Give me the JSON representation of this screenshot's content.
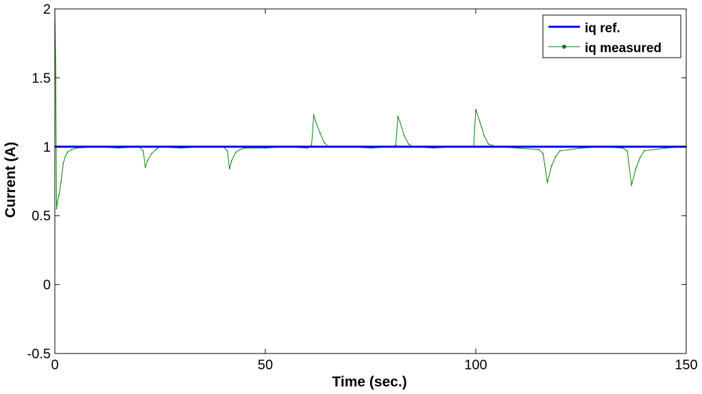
{
  "chart_data": {
    "type": "line",
    "title": "",
    "xlabel": "Time (sec.)",
    "ylabel": "Current (A)",
    "xlim": [
      0,
      150
    ],
    "ylim": [
      -0.5,
      2
    ],
    "xticks": [
      0,
      50,
      100,
      150
    ],
    "xtick_labels": [
      "0",
      "50",
      "100",
      "150"
    ],
    "yticks": [
      -0.5,
      0,
      0.5,
      1,
      1.5,
      2
    ],
    "ytick_labels": [
      "-0.5",
      "0",
      "0.5",
      "1",
      "1.5",
      "2"
    ],
    "grid": false,
    "legend_position": "top-right",
    "series": [
      {
        "name": "iq ref.",
        "color": "#0000ff",
        "style": "solid-thick",
        "x": [
          0,
          150
        ],
        "y": [
          1,
          1
        ]
      },
      {
        "name": "iq measured",
        "color": "#008000",
        "style": "thin-with-dots",
        "x": [
          0,
          0.2,
          0.4,
          0.6,
          1,
          1.5,
          2,
          2.5,
          3,
          4,
          5,
          10,
          15,
          20,
          21,
          21.5,
          22,
          23,
          24,
          25,
          30,
          35,
          40,
          41,
          41.5,
          42,
          43,
          44,
          45,
          50,
          55,
          60,
          61,
          61.5,
          62,
          63,
          64,
          65,
          70,
          75,
          80,
          81,
          81.5,
          82,
          83,
          84,
          85,
          90,
          95,
          99.5,
          100,
          101,
          102,
          103,
          105,
          110,
          115,
          116,
          117,
          118,
          119,
          120,
          125,
          130,
          135,
          136,
          137,
          138,
          139,
          140,
          145,
          150
        ],
        "y": [
          2,
          1.6,
          0.55,
          0.6,
          0.65,
          0.75,
          0.88,
          0.93,
          0.96,
          0.98,
          0.99,
          1.0,
          0.99,
          1.0,
          0.97,
          0.85,
          0.9,
          0.95,
          0.98,
          1.0,
          0.99,
          1.0,
          1.0,
          0.97,
          0.84,
          0.9,
          0.96,
          0.98,
          0.99,
          0.99,
          1.0,
          0.99,
          1.01,
          1.23,
          1.18,
          1.1,
          1.03,
          1.0,
          1.0,
          0.99,
          1.0,
          1.01,
          1.22,
          1.18,
          1.08,
          1.02,
          1.0,
          0.99,
          1.0,
          1.0,
          1.27,
          1.18,
          1.08,
          1.02,
          1.0,
          0.99,
          0.98,
          0.95,
          0.74,
          0.86,
          0.93,
          0.97,
          0.99,
          1.0,
          0.99,
          0.97,
          0.72,
          0.84,
          0.92,
          0.97,
          0.99,
          1.0
        ]
      }
    ]
  }
}
